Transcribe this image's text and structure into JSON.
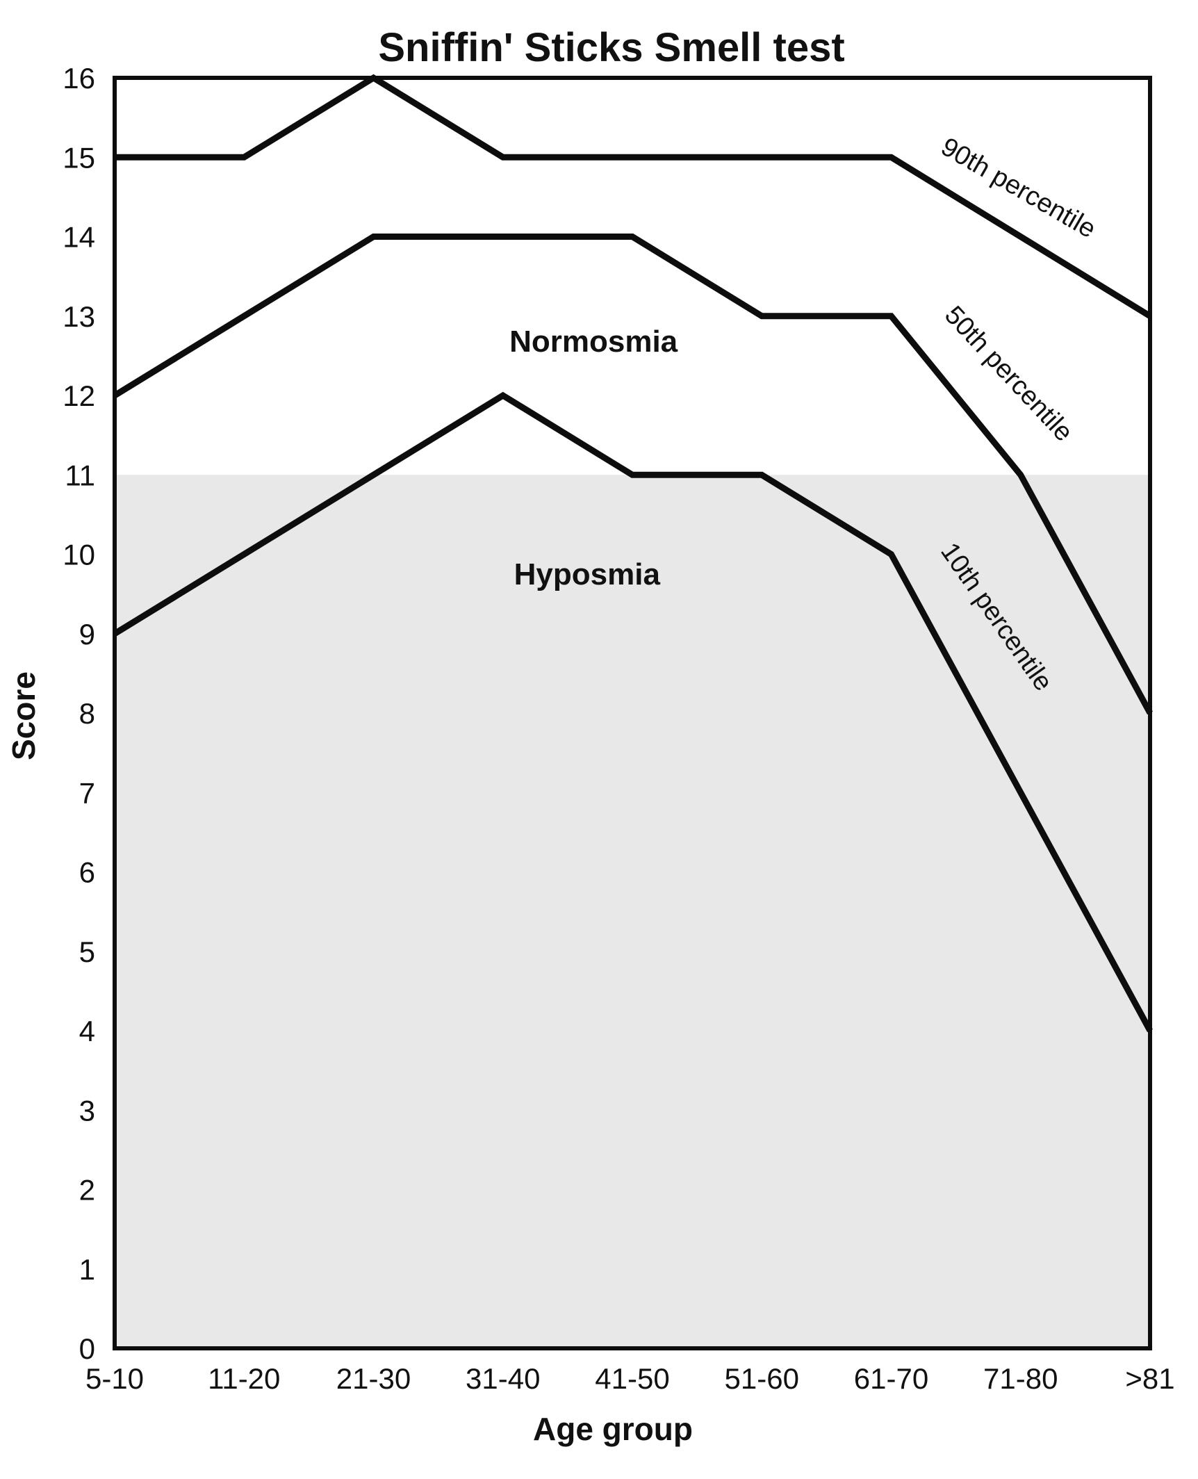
{
  "chart_data": {
    "type": "line",
    "title": "Sniffin' Sticks Smell test",
    "xlabel": "Age group",
    "ylabel": "Score",
    "categories": [
      "5-10",
      "11-20",
      "21-30",
      "31-40",
      "41-50",
      "51-60",
      "61-70",
      "71-80",
      ">81"
    ],
    "ylim": [
      0,
      16
    ],
    "yticks": [
      0,
      1,
      2,
      3,
      4,
      5,
      6,
      7,
      8,
      9,
      10,
      11,
      12,
      13,
      14,
      15,
      16
    ],
    "grid": false,
    "line_color": "#0d0d0d",
    "series": [
      {
        "name": "90th percentile",
        "values": [
          15,
          15,
          16,
          15,
          15,
          15,
          15,
          14,
          13
        ],
        "label_anchor": {
          "x": 6.95,
          "score": 14.52,
          "rotation": 30
        }
      },
      {
        "name": "50th percentile",
        "values": [
          12,
          13,
          14,
          14,
          14,
          13,
          13,
          11,
          8
        ],
        "label_anchor": {
          "x": 6.86,
          "score": 12.2,
          "rotation": 47
        }
      },
      {
        "name": "10th percentile",
        "values": [
          9,
          10,
          11,
          12,
          11,
          11,
          10,
          7,
          4
        ],
        "label_anchor": {
          "x": 6.76,
          "score": 9.15,
          "rotation": 55
        }
      }
    ],
    "regions": [
      {
        "label": "Normosmia",
        "range": "score above 11",
        "fill": "#ffffff",
        "label_anchor": {
          "x": 3.7,
          "score": 12.55
        }
      },
      {
        "label": "Hyposmia",
        "range": "score 11 and below",
        "threshold_score": 11,
        "fill": "#e8e8e8",
        "label_anchor": {
          "x": 3.65,
          "score": 9.62
        }
      }
    ]
  }
}
